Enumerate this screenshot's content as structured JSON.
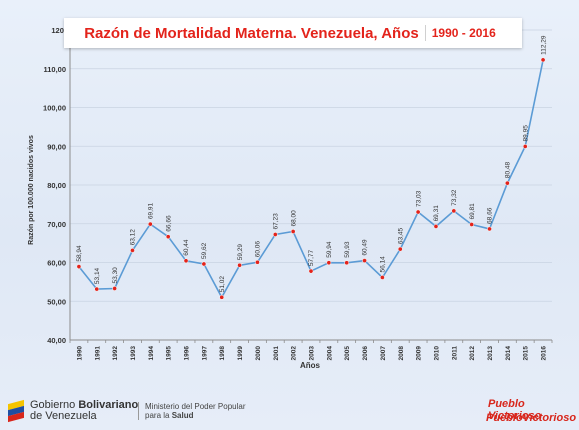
{
  "title": "Razón de Mortalidad Materna. Venezuela, Años",
  "title_years": "1990 - 2016",
  "chart_data": {
    "type": "line",
    "x": [
      "1990",
      "1991",
      "1992",
      "1993",
      "1994",
      "1995",
      "1996",
      "1997",
      "1998",
      "1999",
      "2000",
      "2001",
      "2002",
      "2003",
      "2004",
      "2005",
      "2006",
      "2007",
      "2008",
      "2009",
      "2010",
      "2011",
      "2012",
      "2013",
      "2014",
      "2015",
      "2016"
    ],
    "values": [
      58.94,
      53.14,
      53.3,
      63.12,
      69.91,
      66.66,
      60.44,
      59.62,
      51.02,
      59.29,
      60.06,
      67.23,
      68.0,
      57.77,
      59.94,
      59.93,
      60.49,
      56.14,
      63.45,
      73.03,
      69.31,
      73.32,
      69.81,
      68.66,
      80.48,
      89.95,
      112.29
    ],
    "labels": [
      "58,94",
      "53,14",
      "53,30",
      "63,12",
      "69,91",
      "66,66",
      "60,44",
      "59,62",
      "51,02",
      "59,29",
      "60,06",
      "67,23",
      "68,00",
      "57,77",
      "59,94",
      "59,93",
      "60,49",
      "56,14",
      "63,45",
      "73,03",
      "69,31",
      "73,32",
      "69,81",
      "68,66",
      "80,48",
      "89,95",
      "112,29"
    ],
    "ylim": [
      40,
      120
    ],
    "yticks": [
      "40,00",
      "50,00",
      "60,00",
      "70,00",
      "80,00",
      "90,00",
      "100,00",
      "110,00",
      "120,"
    ],
    "xlabel": "Años",
    "ylabel": "Razón por 100.000 nacidos vivos",
    "grid": true,
    "line_color": "#5b9bd5",
    "marker_color": "#e3231b"
  },
  "footer": {
    "gov_line1_prefix": "Gobierno",
    "gov_line1_bold": "Bolivariano",
    "gov_line2": "de Venezuela",
    "ministry_line1": "Ministerio del Poder Popular",
    "ministry_line2_prefix": "para la",
    "ministry_line2_bold": "Salud",
    "pv_top": "Pueblo Victorioso",
    "pv_text": "PuebloVictorioso"
  }
}
